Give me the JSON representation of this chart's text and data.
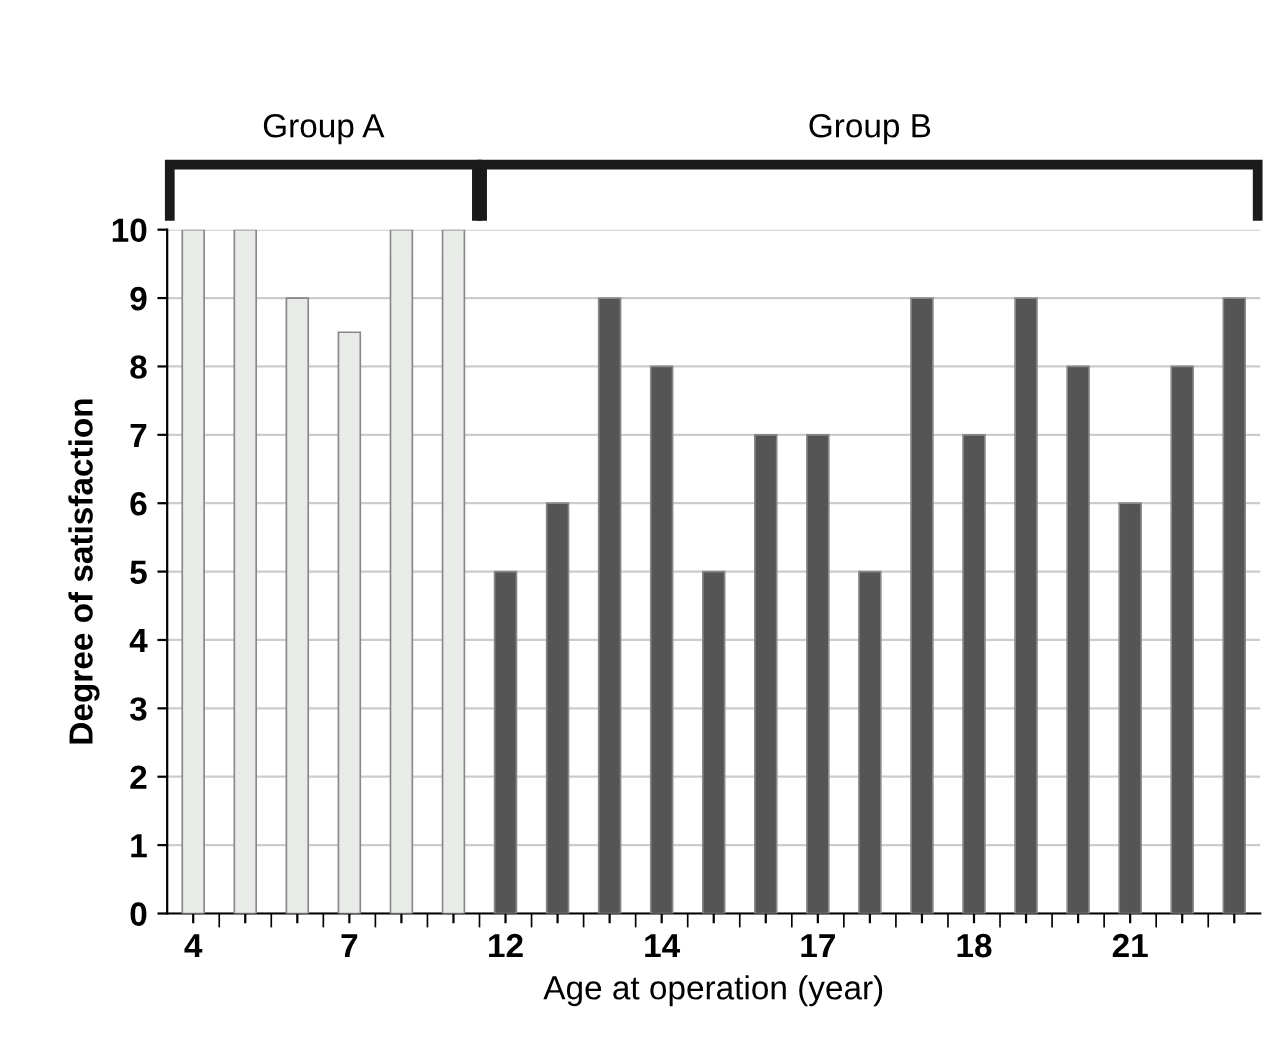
{
  "chart_data": {
    "type": "bar",
    "xlabel": "Age at operation (year)",
    "ylabel": "Degree of satisfaction",
    "categories": [
      "4",
      null,
      null,
      "7",
      null,
      null,
      "12",
      null,
      null,
      "14",
      null,
      null,
      "17",
      null,
      null,
      "18",
      null,
      null,
      "21",
      null,
      null
    ],
    "series": [
      {
        "color": "#e9ebe9",
        "values": [
          10,
          10,
          9,
          8.5,
          10,
          10,
          null,
          null,
          null,
          null,
          null,
          null,
          null,
          null,
          null,
          null,
          null,
          null,
          null,
          null,
          null
        ]
      },
      {
        "color": "#555555",
        "values": [
          null,
          null,
          null,
          null,
          null,
          null,
          5,
          6,
          9,
          8,
          5,
          7,
          7,
          5,
          9,
          7,
          9,
          8,
          6,
          8,
          9
        ]
      }
    ],
    "annotations": [
      "Group A",
      "Group B"
    ],
    "ylim": [
      0,
      10
    ],
    "yticks": [
      0,
      1,
      2,
      3,
      4,
      5,
      6,
      7,
      8,
      9,
      10
    ],
    "grid": "y"
  }
}
